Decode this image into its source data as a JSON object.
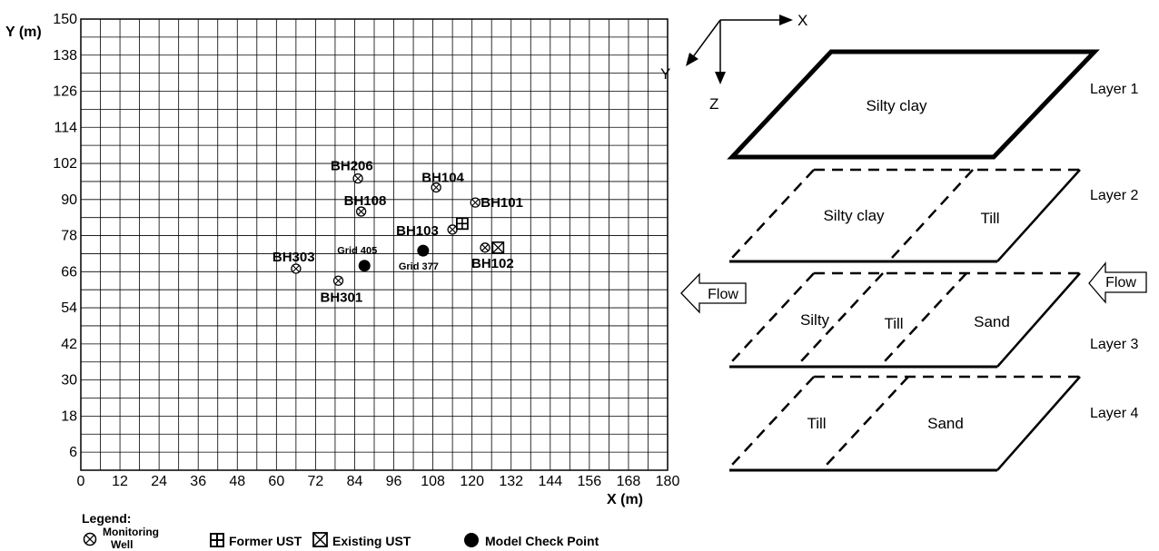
{
  "grid_map": {
    "y_axis_label": "Y (m)",
    "x_axis_label": "X (m)",
    "x_range": [
      0,
      180
    ],
    "y_range": [
      0,
      150
    ],
    "grid_step": 6,
    "x_ticks": [
      "0",
      "12",
      "24",
      "36",
      "48",
      "60",
      "72",
      "84",
      "96",
      "108",
      "120",
      "132",
      "144",
      "156",
      "168",
      "180"
    ],
    "y_ticks": [
      "6",
      "18",
      "30",
      "42",
      "54",
      "66",
      "78",
      "90",
      "102",
      "114",
      "126",
      "138",
      "150"
    ],
    "wells": [
      {
        "name": "BH206",
        "x": 85,
        "y": 97
      },
      {
        "name": "BH104",
        "x": 109,
        "y": 94
      },
      {
        "name": "BH108",
        "x": 86,
        "y": 86
      },
      {
        "name": "BH101",
        "x": 121,
        "y": 89
      },
      {
        "name": "BH103",
        "x": 114,
        "y": 80
      },
      {
        "name": "BH102",
        "x": 124,
        "y": 74
      },
      {
        "name": "BH303",
        "x": 66,
        "y": 67
      },
      {
        "name": "BH301",
        "x": 79,
        "y": 63
      }
    ],
    "former_ust": {
      "x": 117,
      "y": 82
    },
    "existing_ust": {
      "x": 128,
      "y": 74
    },
    "check_points": [
      {
        "name": "Grid 405",
        "x": 87,
        "y": 68
      },
      {
        "name": "Grid 377",
        "x": 105,
        "y": 73
      }
    ]
  },
  "legend": {
    "title": "Legend:",
    "monitoring_well_line1": "Monitoring",
    "monitoring_well_line2": "Well",
    "former_ust": "Former UST",
    "existing_ust": "Existing UST",
    "model_check_point": "Model Check Point"
  },
  "coords": {
    "x": "X",
    "y": "Y",
    "z": "Z"
  },
  "layers": [
    {
      "name": "Layer 1",
      "zones": [
        "Silty clay"
      ]
    },
    {
      "name": "Layer 2",
      "zones": [
        "Silty clay",
        "Till"
      ]
    },
    {
      "name": "Layer 3",
      "zones": [
        "Silty",
        "Till",
        "Sand"
      ]
    },
    {
      "name": "Layer 4",
      "zones": [
        "Till",
        "Sand"
      ]
    }
  ],
  "flow_left": "Flow",
  "flow_right": "Flow"
}
